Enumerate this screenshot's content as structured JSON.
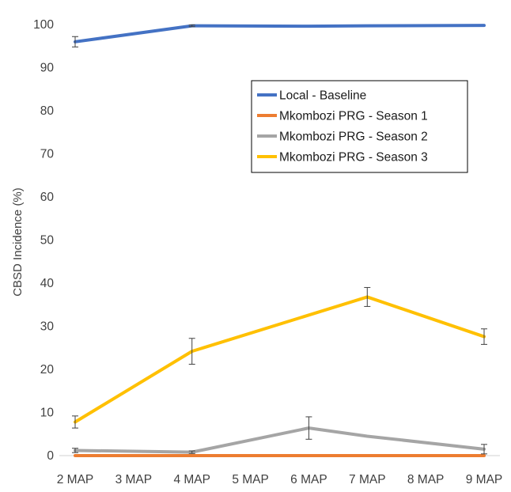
{
  "chart_data": {
    "type": "line",
    "title": "",
    "xlabel": "",
    "ylabel": "CBSD Incidence (%)",
    "categories": [
      "2 MAP",
      "3 MAP",
      "4 MAP",
      "5 MAP",
      "6 MAP",
      "7 MAP",
      "8 MAP",
      "9 MAP"
    ],
    "ylim": [
      0,
      100
    ],
    "yticks": [
      0,
      10,
      20,
      30,
      40,
      50,
      60,
      70,
      80,
      90,
      100
    ],
    "grid": false,
    "legend_position": "upper-right",
    "series": [
      {
        "name": "Local - Baseline",
        "color": "#4472C4",
        "x": [
          0,
          2,
          4,
          5,
          7
        ],
        "values": [
          96,
          99.7,
          99.6,
          99.7,
          99.8
        ],
        "error": [
          1.2,
          0.2,
          0,
          0,
          0
        ]
      },
      {
        "name": "Mkombozi PRG - Season 1",
        "color": "#ED7D31",
        "x": [
          0,
          2,
          4,
          5,
          7
        ],
        "values": [
          0,
          0,
          0,
          0,
          0
        ],
        "error": [
          0,
          0,
          0,
          0,
          0
        ]
      },
      {
        "name": "Mkombozi PRG - Season 2",
        "color": "#A5A5A5",
        "x": [
          0,
          2,
          4,
          5,
          7
        ],
        "values": [
          1.2,
          0.8,
          6.4,
          4.5,
          1.5
        ],
        "error": [
          0.5,
          0.3,
          2.6,
          0,
          1.1
        ]
      },
      {
        "name": "Mkombozi PRG - Season 3",
        "color": "#FFC000",
        "x": [
          0,
          2,
          5,
          7
        ],
        "values": [
          7.8,
          24.2,
          36.8,
          27.6
        ],
        "error": [
          1.4,
          3.0,
          2.2,
          1.8
        ]
      }
    ]
  }
}
